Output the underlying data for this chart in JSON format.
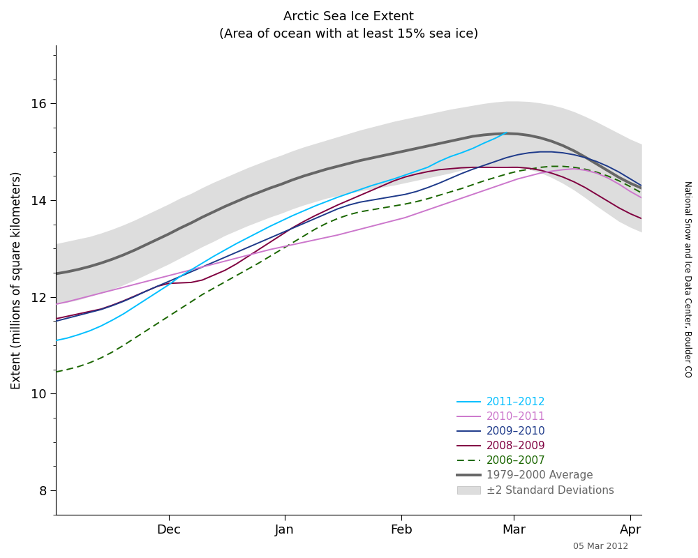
{
  "title": "Arctic Sea Ice Extent",
  "subtitle": "(Area of ocean with at least 15% sea ice)",
  "ylabel": "Extent (millions of square kilometers)",
  "ylim": [
    7.5,
    17.2
  ],
  "xlim": [
    0,
    156
  ],
  "watermark": "05 Mar 2012",
  "right_label": "National Snow and Ice Data Center, Boulder CO",
  "month_ticks": [
    30,
    61,
    92,
    122,
    153
  ],
  "month_labels": [
    "Dec",
    "Jan",
    "Feb",
    "Mar",
    "Apr"
  ],
  "colors": {
    "2011-2012": "#00BFFF",
    "2010-2011": "#CC77CC",
    "2009-2010": "#1E3A8A",
    "2008-2009": "#800040",
    "2006-2007": "#1A6600",
    "average": "#666666",
    "std_fill": "#DDDDDD"
  },
  "avg_x": [
    0,
    3,
    6,
    9,
    12,
    15,
    18,
    21,
    24,
    27,
    30,
    33,
    36,
    39,
    42,
    45,
    48,
    51,
    54,
    57,
    60,
    63,
    66,
    69,
    72,
    75,
    78,
    81,
    84,
    87,
    90,
    93,
    96,
    99,
    102,
    105,
    108,
    111,
    114,
    117,
    120,
    123,
    126,
    129,
    132,
    135,
    138,
    141,
    144,
    147,
    150,
    153,
    156
  ],
  "avg_y": [
    12.48,
    12.52,
    12.57,
    12.63,
    12.7,
    12.78,
    12.87,
    12.97,
    13.08,
    13.19,
    13.3,
    13.42,
    13.53,
    13.65,
    13.76,
    13.87,
    13.97,
    14.07,
    14.16,
    14.25,
    14.33,
    14.42,
    14.5,
    14.57,
    14.64,
    14.7,
    14.76,
    14.82,
    14.87,
    14.92,
    14.97,
    15.02,
    15.07,
    15.12,
    15.17,
    15.22,
    15.27,
    15.32,
    15.35,
    15.37,
    15.38,
    15.37,
    15.34,
    15.29,
    15.22,
    15.13,
    15.02,
    14.89,
    14.75,
    14.61,
    14.47,
    14.35,
    14.25
  ],
  "avg_upper": [
    13.1,
    13.15,
    13.2,
    13.25,
    13.32,
    13.4,
    13.49,
    13.59,
    13.7,
    13.81,
    13.92,
    14.04,
    14.14,
    14.26,
    14.37,
    14.47,
    14.57,
    14.67,
    14.76,
    14.85,
    14.93,
    15.02,
    15.1,
    15.17,
    15.24,
    15.31,
    15.38,
    15.45,
    15.51,
    15.57,
    15.63,
    15.68,
    15.73,
    15.78,
    15.83,
    15.88,
    15.92,
    15.96,
    16.0,
    16.03,
    16.05,
    16.05,
    16.04,
    16.01,
    15.97,
    15.91,
    15.83,
    15.73,
    15.62,
    15.5,
    15.38,
    15.26,
    15.16
  ],
  "avg_lower": [
    11.86,
    11.89,
    11.94,
    12.01,
    12.08,
    12.16,
    12.25,
    12.35,
    12.46,
    12.57,
    12.68,
    12.8,
    12.92,
    13.04,
    13.15,
    13.27,
    13.37,
    13.47,
    13.56,
    13.65,
    13.73,
    13.82,
    13.9,
    13.97,
    14.04,
    14.09,
    14.14,
    14.19,
    14.23,
    14.27,
    14.31,
    14.36,
    14.41,
    14.46,
    14.51,
    14.56,
    14.62,
    14.68,
    14.7,
    14.71,
    14.71,
    14.69,
    14.64,
    14.57,
    14.47,
    14.35,
    14.21,
    14.05,
    13.88,
    13.72,
    13.56,
    13.44,
    13.34
  ],
  "s2011": {
    "x": [
      0,
      3,
      6,
      9,
      12,
      15,
      18,
      21,
      24,
      27,
      30,
      33,
      36,
      39,
      42,
      45,
      48,
      51,
      54,
      57,
      60,
      63,
      66,
      69,
      72,
      75,
      78,
      81,
      84,
      87,
      90,
      93,
      96,
      99,
      102,
      105,
      108,
      111,
      114,
      117,
      120
    ],
    "y": [
      11.1,
      11.15,
      11.22,
      11.3,
      11.4,
      11.52,
      11.65,
      11.8,
      11.95,
      12.1,
      12.25,
      12.42,
      12.56,
      12.7,
      12.84,
      12.97,
      13.1,
      13.22,
      13.34,
      13.46,
      13.57,
      13.68,
      13.78,
      13.88,
      13.97,
      14.06,
      14.14,
      14.22,
      14.3,
      14.37,
      14.44,
      14.52,
      14.6,
      14.68,
      14.8,
      14.9,
      14.98,
      15.07,
      15.18,
      15.28,
      15.4
    ]
  },
  "s2010": {
    "x": [
      0,
      3,
      6,
      9,
      12,
      15,
      18,
      21,
      24,
      27,
      30,
      33,
      36,
      39,
      42,
      45,
      48,
      51,
      54,
      57,
      60,
      63,
      66,
      69,
      72,
      75,
      78,
      81,
      84,
      87,
      90,
      93,
      96,
      99,
      102,
      105,
      108,
      111,
      114,
      117,
      120,
      123,
      126,
      129,
      132,
      135,
      138,
      141,
      144,
      147,
      150,
      153,
      156
    ],
    "y": [
      11.85,
      11.9,
      11.96,
      12.02,
      12.08,
      12.14,
      12.2,
      12.26,
      12.32,
      12.38,
      12.44,
      12.5,
      12.56,
      12.62,
      12.68,
      12.74,
      12.8,
      12.86,
      12.92,
      12.98,
      13.03,
      13.08,
      13.13,
      13.18,
      13.23,
      13.28,
      13.34,
      13.4,
      13.46,
      13.52,
      13.58,
      13.64,
      13.72,
      13.8,
      13.88,
      13.96,
      14.04,
      14.12,
      14.2,
      14.28,
      14.36,
      14.44,
      14.5,
      14.56,
      14.6,
      14.63,
      14.65,
      14.62,
      14.56,
      14.46,
      14.33,
      14.18,
      14.05
    ]
  },
  "s2009": {
    "x": [
      0,
      3,
      6,
      9,
      12,
      15,
      18,
      21,
      24,
      27,
      30,
      33,
      36,
      39,
      42,
      45,
      48,
      51,
      54,
      57,
      60,
      63,
      66,
      69,
      72,
      75,
      78,
      81,
      84,
      87,
      90,
      93,
      96,
      99,
      102,
      105,
      108,
      111,
      114,
      117,
      120,
      123,
      126,
      129,
      132,
      135,
      138,
      141,
      144,
      147,
      150,
      153,
      156
    ],
    "y": [
      11.5,
      11.56,
      11.62,
      11.68,
      11.74,
      11.82,
      11.91,
      12.01,
      12.12,
      12.22,
      12.32,
      12.42,
      12.52,
      12.62,
      12.72,
      12.82,
      12.92,
      13.02,
      13.12,
      13.22,
      13.32,
      13.42,
      13.52,
      13.62,
      13.72,
      13.82,
      13.9,
      13.96,
      14.0,
      14.04,
      14.08,
      14.12,
      14.18,
      14.26,
      14.35,
      14.45,
      14.55,
      14.64,
      14.72,
      14.8,
      14.88,
      14.94,
      14.98,
      15.0,
      15.0,
      14.98,
      14.94,
      14.88,
      14.8,
      14.7,
      14.58,
      14.44,
      14.3
    ]
  },
  "s2008": {
    "x": [
      0,
      3,
      6,
      9,
      12,
      15,
      18,
      21,
      24,
      27,
      30,
      33,
      36,
      39,
      42,
      45,
      48,
      51,
      54,
      57,
      60,
      63,
      66,
      69,
      72,
      75,
      78,
      81,
      84,
      87,
      90,
      93,
      96,
      99,
      102,
      105,
      108,
      111,
      114,
      117,
      120,
      123,
      126,
      129,
      132,
      135,
      138,
      141,
      144,
      147,
      150,
      153,
      156
    ],
    "y": [
      11.55,
      11.6,
      11.65,
      11.7,
      11.75,
      11.83,
      11.92,
      12.02,
      12.12,
      12.22,
      12.28,
      12.29,
      12.3,
      12.35,
      12.45,
      12.55,
      12.68,
      12.83,
      12.98,
      13.13,
      13.28,
      13.43,
      13.56,
      13.68,
      13.79,
      13.9,
      14.0,
      14.1,
      14.2,
      14.3,
      14.4,
      14.48,
      14.54,
      14.59,
      14.63,
      14.65,
      14.67,
      14.68,
      14.68,
      14.68,
      14.68,
      14.68,
      14.66,
      14.62,
      14.56,
      14.48,
      14.38,
      14.26,
      14.12,
      13.98,
      13.84,
      13.72,
      13.62
    ]
  },
  "s2006": {
    "x": [
      0,
      3,
      6,
      9,
      12,
      15,
      18,
      21,
      24,
      27,
      30,
      33,
      36,
      39,
      42,
      45,
      48,
      51,
      54,
      57,
      60,
      63,
      66,
      69,
      72,
      75,
      78,
      81,
      84,
      87,
      90,
      93,
      96,
      99,
      102,
      105,
      108,
      111,
      114,
      117,
      120,
      123,
      126,
      129,
      132,
      135,
      138,
      141,
      144,
      147,
      150,
      153,
      156
    ],
    "y": [
      10.45,
      10.5,
      10.56,
      10.64,
      10.74,
      10.86,
      11.0,
      11.15,
      11.3,
      11.45,
      11.6,
      11.75,
      11.9,
      12.05,
      12.18,
      12.31,
      12.44,
      12.57,
      12.7,
      12.84,
      12.98,
      13.12,
      13.26,
      13.4,
      13.52,
      13.62,
      13.7,
      13.76,
      13.8,
      13.84,
      13.88,
      13.92,
      13.97,
      14.03,
      14.1,
      14.17,
      14.24,
      14.32,
      14.4,
      14.47,
      14.54,
      14.6,
      14.64,
      14.68,
      14.7,
      14.7,
      14.68,
      14.64,
      14.58,
      14.5,
      14.4,
      14.28,
      14.15
    ]
  }
}
